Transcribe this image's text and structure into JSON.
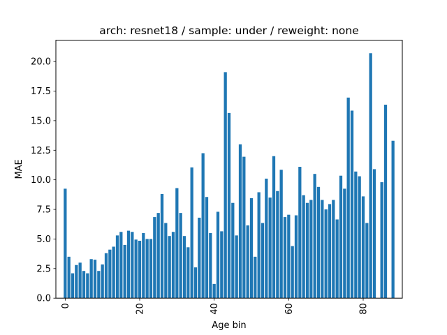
{
  "chart_data": {
    "type": "bar",
    "title": "arch: resnet18 / sample: under / reweight: none",
    "xlabel": "Age bin",
    "ylabel": "MAE",
    "xlim": [
      -2.5,
      90.5
    ],
    "ylim": [
      0,
      21.8
    ],
    "xticks": [
      0,
      20,
      40,
      60,
      80
    ],
    "yticks": [
      0.0,
      2.5,
      5.0,
      7.5,
      10.0,
      12.5,
      15.0,
      17.5,
      20.0
    ],
    "ytick_labels": [
      "0.0",
      "2.5",
      "5.0",
      "7.5",
      "10.0",
      "12.5",
      "15.0",
      "17.5",
      "20.0"
    ],
    "bar_color": "#1f77b4",
    "grid": false,
    "x": [
      0,
      1,
      2,
      3,
      4,
      5,
      6,
      7,
      8,
      9,
      10,
      11,
      12,
      13,
      14,
      15,
      16,
      17,
      18,
      19,
      20,
      21,
      22,
      23,
      24,
      25,
      26,
      27,
      28,
      29,
      30,
      31,
      32,
      33,
      34,
      35,
      36,
      37,
      38,
      39,
      40,
      41,
      42,
      43,
      44,
      45,
      46,
      47,
      48,
      49,
      50,
      51,
      52,
      53,
      54,
      55,
      56,
      57,
      58,
      59,
      60,
      61,
      62,
      63,
      64,
      65,
      66,
      67,
      68,
      69,
      70,
      71,
      72,
      73,
      74,
      75,
      76,
      77,
      78,
      79,
      80,
      81,
      82,
      83,
      84,
      85,
      86,
      87,
      88
    ],
    "values": [
      9.25,
      3.5,
      2.1,
      2.8,
      3.0,
      2.3,
      2.1,
      3.3,
      3.25,
      2.3,
      2.85,
      3.8,
      4.1,
      4.35,
      5.3,
      5.6,
      4.5,
      5.7,
      5.6,
      4.95,
      4.85,
      5.5,
      5.0,
      5.0,
      6.85,
      7.2,
      8.8,
      6.35,
      5.25,
      5.6,
      9.3,
      7.2,
      5.25,
      4.3,
      11.05,
      2.6,
      6.8,
      12.25,
      8.55,
      5.5,
      1.2,
      7.3,
      5.65,
      19.1,
      15.65,
      8.05,
      5.3,
      13.0,
      11.95,
      6.15,
      8.45,
      3.5,
      8.95,
      6.35,
      10.1,
      8.5,
      12.0,
      9.05,
      10.85,
      6.85,
      7.05,
      4.4,
      7.0,
      11.1,
      8.7,
      8.05,
      8.3,
      10.5,
      9.4,
      8.3,
      7.5,
      7.95,
      8.3,
      6.65,
      10.35,
      9.25,
      16.95,
      15.85,
      10.7,
      10.3,
      8.6,
      6.35,
      20.7,
      10.9,
      0,
      9.8,
      16.35,
      0,
      13.3
    ]
  }
}
